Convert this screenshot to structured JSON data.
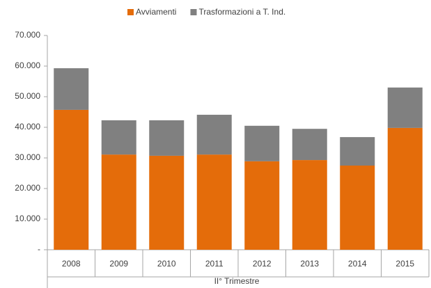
{
  "chart_data": {
    "type": "stacked_bar",
    "categories": [
      "2008",
      "2009",
      "2010",
      "2011",
      "2012",
      "2013",
      "2014",
      "2015"
    ],
    "series": [
      {
        "name": "Avviamenti",
        "color": "#e46c0a",
        "values": [
          45700,
          31100,
          30700,
          31100,
          28900,
          29300,
          27500,
          39800
        ]
      },
      {
        "name": "Trasformazioni a T. Ind.",
        "color": "#808080",
        "values": [
          13600,
          11200,
          11600,
          13000,
          11600,
          10200,
          9300,
          13200
        ]
      }
    ],
    "xlabel": "II° Trimestre",
    "ylim": [
      0,
      70000
    ],
    "yticks": [
      {
        "value": 0,
        "label": "-"
      },
      {
        "value": 10000,
        "label": "10.000"
      },
      {
        "value": 20000,
        "label": "20.000"
      },
      {
        "value": 30000,
        "label": "30.000"
      },
      {
        "value": 40000,
        "label": "40.000"
      },
      {
        "value": 50000,
        "label": "50.000"
      },
      {
        "value": 60000,
        "label": "60.000"
      },
      {
        "value": 70000,
        "label": "70.000"
      }
    ],
    "grid": false,
    "legend": "top"
  }
}
